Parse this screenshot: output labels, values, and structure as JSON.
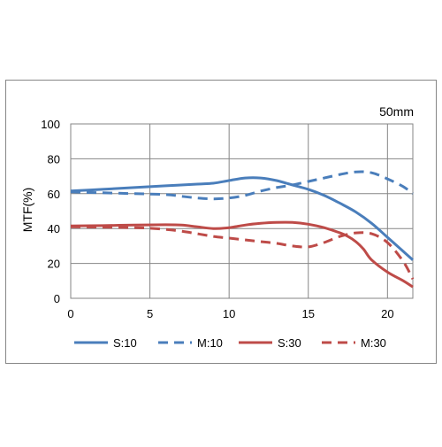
{
  "chart_data": {
    "type": "line",
    "annotation": "50mm",
    "xlabel": "",
    "ylabel": "MTF(%)",
    "xlim": [
      0,
      21.6
    ],
    "ylim": [
      0,
      100
    ],
    "xticks": [
      0,
      5,
      10,
      15,
      20
    ],
    "yticks": [
      0,
      20,
      40,
      60,
      80,
      100
    ],
    "grid": true,
    "legend_position": "bottom",
    "series": [
      {
        "name": "S:10",
        "color": "#4a7ebb",
        "dash": "solid",
        "x": [
          0,
          2,
          4,
          6,
          8,
          9,
          10,
          11,
          12,
          13,
          14,
          15,
          16,
          17,
          18,
          19,
          20,
          21.6
        ],
        "y": [
          61.5,
          62.5,
          63.5,
          64.5,
          65.5,
          66,
          67.5,
          69,
          69,
          67.5,
          65,
          62.5,
          59,
          54.5,
          49.5,
          43,
          35,
          22
        ]
      },
      {
        "name": "M:10",
        "color": "#4a7ebb",
        "dash": "dashed",
        "x": [
          0,
          2,
          4,
          6,
          7,
          8,
          9,
          10,
          11,
          12,
          13,
          14,
          15,
          16,
          17,
          18,
          19,
          20,
          21,
          21.6
        ],
        "y": [
          61,
          60.5,
          60,
          59.5,
          58.5,
          57.5,
          57,
          57.5,
          59,
          61.5,
          63.5,
          65,
          67,
          69,
          71,
          72.5,
          72,
          68.5,
          64,
          60
        ]
      },
      {
        "name": "S:30",
        "color": "#be4b48",
        "dash": "solid",
        "x": [
          0,
          2,
          4,
          6,
          7,
          8,
          9,
          10,
          11,
          12,
          13,
          14,
          15,
          16,
          17,
          17.5,
          18,
          18.5,
          19,
          20,
          21,
          21.6
        ],
        "y": [
          41.5,
          41.7,
          42,
          42.2,
          42,
          41,
          40,
          40.5,
          42,
          43,
          43.5,
          43.5,
          42.5,
          40.5,
          37.5,
          35.5,
          32.5,
          28,
          22,
          15,
          10,
          6.5
        ]
      },
      {
        "name": "M:30",
        "color": "#be4b48",
        "dash": "dashed",
        "x": [
          0,
          2,
          4,
          5,
          6,
          7,
          8,
          9,
          10,
          11,
          12,
          13,
          14,
          15,
          16,
          17,
          18,
          19,
          20,
          21,
          21.6
        ],
        "y": [
          41,
          40.8,
          40.5,
          40.2,
          39.5,
          38.5,
          37,
          35.5,
          34.5,
          33.5,
          32.5,
          31.5,
          30,
          29.5,
          32,
          35.5,
          37.5,
          37,
          32,
          21,
          11
        ]
      }
    ]
  }
}
